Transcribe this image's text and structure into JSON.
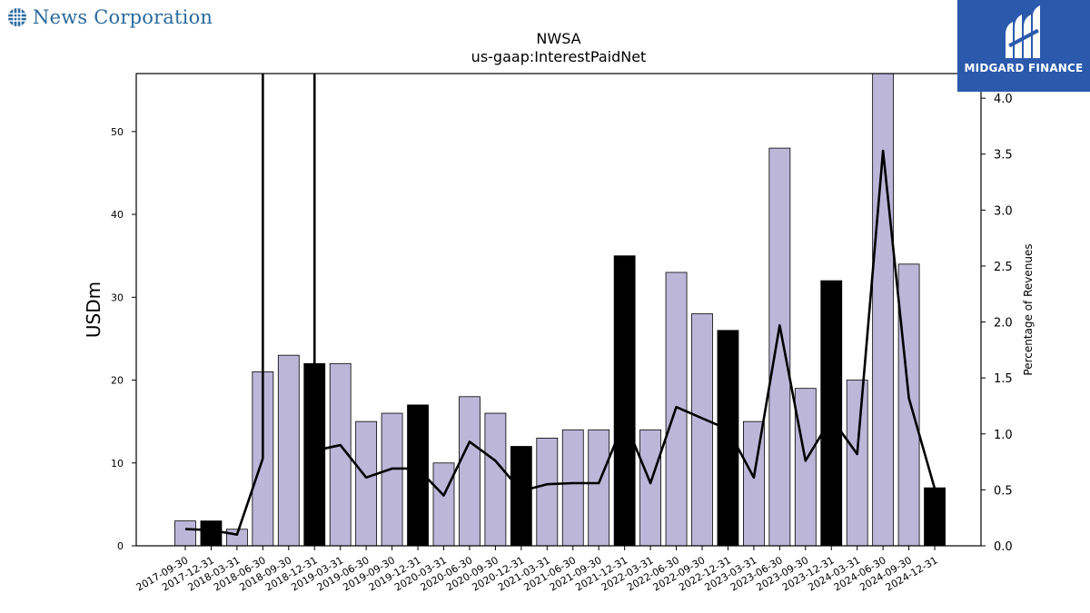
{
  "header": {
    "company_name": "News Corporation",
    "watermark": "MIDGARD FINANCE"
  },
  "colors": {
    "bar_default": "#bcb7d9",
    "bar_highlight": "#000000",
    "line": "#000000",
    "brand_blue": "#2a6a9e",
    "logo_bg": "#2b5aad"
  },
  "chart_data": {
    "type": "bar",
    "title": "NWSA",
    "subtitle": "us-gaap:InterestPaidNet",
    "ylabel": "USDm",
    "y2label": "Percentage of Revenues",
    "ylim": [
      0,
      57
    ],
    "y2lim": [
      0,
      4.22
    ],
    "yticks": [
      0,
      10,
      20,
      30,
      40,
      50
    ],
    "y2ticks": [
      "0.0",
      "0.5",
      "1.0",
      "1.5",
      "2.0",
      "2.5",
      "3.0",
      "3.5",
      "4.0"
    ],
    "categories": [
      "2017-09-30",
      "2017-12-31",
      "2018-03-31",
      "2018-06-30",
      "2018-09-30",
      "2018-12-31",
      "2019-03-31",
      "2019-06-30",
      "2019-09-30",
      "2019-12-31",
      "2020-03-31",
      "2020-06-30",
      "2020-09-30",
      "2020-12-31",
      "2021-03-31",
      "2021-06-30",
      "2021-09-30",
      "2021-12-31",
      "2022-03-31",
      "2022-06-30",
      "2022-09-30",
      "2022-12-31",
      "2023-03-31",
      "2023-06-30",
      "2023-09-30",
      "2023-12-31",
      "2024-03-31",
      "2024-06-30",
      "2024-09-30",
      "2024-12-31"
    ],
    "series": [
      {
        "values": [
          3,
          3,
          2,
          21,
          23,
          22,
          22,
          15,
          16,
          17,
          10,
          18,
          16,
          12,
          13,
          14,
          14,
          35,
          14,
          33,
          28,
          26,
          15,
          48,
          19,
          32,
          20,
          57,
          34,
          7
        ],
        "highlight": [
          false,
          true,
          false,
          false,
          false,
          true,
          false,
          false,
          false,
          true,
          false,
          false,
          false,
          true,
          false,
          false,
          false,
          true,
          false,
          false,
          false,
          true,
          false,
          false,
          false,
          true,
          false,
          false,
          false,
          true
        ]
      },
      {
        "axis": "right",
        "values": [
          0.15,
          0.14,
          0.1,
          0.78,
          null,
          0.85,
          0.9,
          0.61,
          0.69,
          0.69,
          0.45,
          0.93,
          0.76,
          0.49,
          0.55,
          0.56,
          0.56,
          1.12,
          0.56,
          1.24,
          1.14,
          1.04,
          0.61,
          1.97,
          0.76,
          1.14,
          0.82,
          3.53,
          1.32,
          0.51
        ]
      }
    ],
    "spikes": [
      "2018-06-30",
      "2018-12-31"
    ],
    "grid": false
  }
}
